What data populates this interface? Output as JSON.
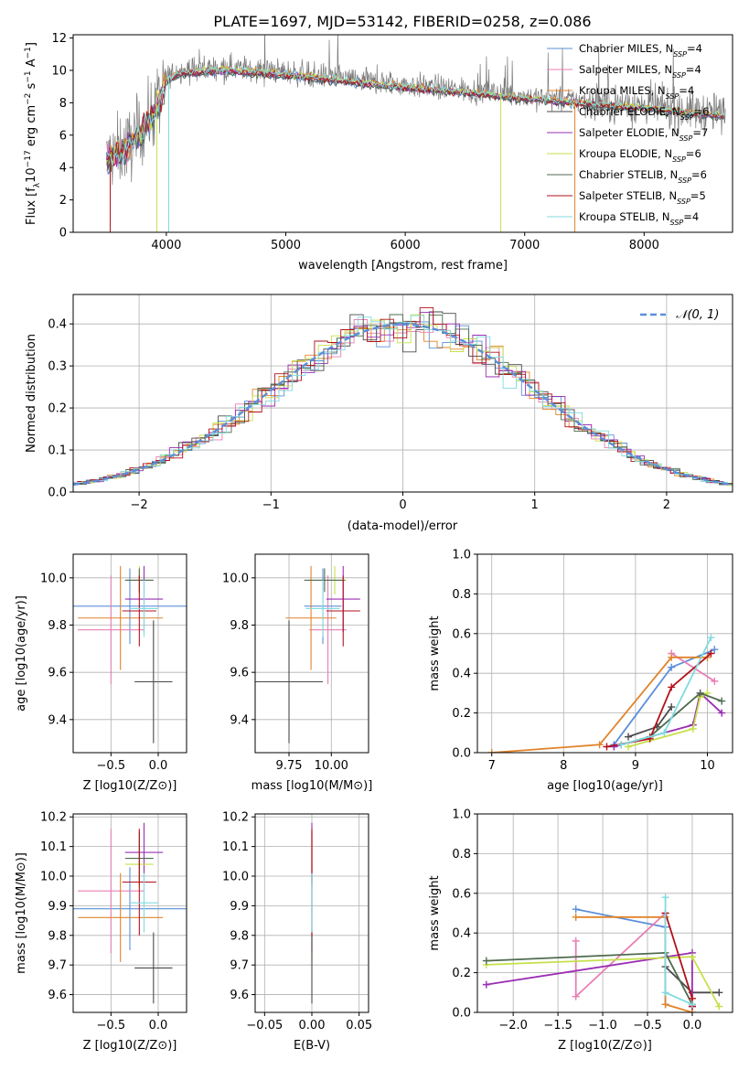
{
  "colors": {
    "Chabrier MILES": "#5b8fd9",
    "Salpeter MILES": "#e87fb4",
    "Kroupa MILES": "#e0842a",
    "Chabrier ELODIE": "#4a4a4a",
    "Salpeter ELODIE": "#9a2db3",
    "Kroupa ELODIE": "#c6e04a",
    "Chabrier STELIB": "#4f6b4f",
    "Salpeter STELIB": "#b3121c",
    "Kroupa STELIB": "#7fdbe0",
    "spectrum": "#7a7a7a",
    "normal": "#5b8fd9"
  },
  "chart_data": [
    {
      "id": "spectrum",
      "type": "line",
      "title": "PLATE=1697, MJD=53142, FIBERID=0258, z=0.086",
      "xlabel": "wavelength [Angstrom, rest frame]",
      "ylabel": "Flux [f_λ 10^-17 erg cm^-2 s^-1 A^-1]",
      "xlim": [
        3220,
        8740
      ],
      "ylim": [
        0,
        12.2
      ],
      "xticks": [
        "4000",
        "5000",
        "6000",
        "7000",
        "8000"
      ],
      "yticks": [
        "0",
        "2",
        "4",
        "6",
        "8",
        "10",
        "12"
      ],
      "legend_position": "top-right",
      "legend": [
        {
          "name": "Chabrier MILES",
          "nssp": "4"
        },
        {
          "name": "Salpeter MILES",
          "nssp": "4"
        },
        {
          "name": "Kroupa MILES",
          "nssp": "4"
        },
        {
          "name": "Chabrier ELODIE",
          "nssp": "6"
        },
        {
          "name": "Salpeter ELODIE",
          "nssp": "7"
        },
        {
          "name": "Kroupa ELODIE",
          "nssp": "6"
        },
        {
          "name": "Chabrier STELIB",
          "nssp": "6"
        },
        {
          "name": "Salpeter STELIB",
          "nssp": "5"
        },
        {
          "name": "Kroupa STELIB",
          "nssp": "4"
        }
      ],
      "continuum": [
        [
          3500,
          4.5
        ],
        [
          3700,
          5.5
        ],
        [
          3900,
          7.5
        ],
        [
          4000,
          9.5
        ],
        [
          4100,
          10.0
        ],
        [
          4500,
          10.2
        ],
        [
          5000,
          9.9
        ],
        [
          5500,
          9.5
        ],
        [
          6000,
          9.1
        ],
        [
          6500,
          8.8
        ],
        [
          7000,
          8.4
        ],
        [
          7500,
          8.1
        ],
        [
          8000,
          7.8
        ],
        [
          8500,
          7.4
        ],
        [
          8680,
          7.3
        ]
      ]
    },
    {
      "id": "residuals",
      "type": "histogram",
      "xlabel": "(data-model)/error",
      "ylabel": "Normed distribution",
      "xlim": [
        -2.5,
        2.5
      ],
      "ylim": [
        0,
        0.47
      ],
      "xticks": [
        "−2",
        "−1",
        "0",
        "1",
        "2"
      ],
      "yticks": [
        "0.0",
        "0.1",
        "0.2",
        "0.3",
        "0.4"
      ],
      "grid": true,
      "legend_position": "top-right",
      "normal_label": "𝒩(0, 1)",
      "bin_width": 0.1
    },
    {
      "id": "age-vs-Z",
      "type": "errorbar",
      "xlabel": "Z [log10(Z/Z⊙)]",
      "ylabel": "age [log10(age/yr)]",
      "xlim": [
        -0.9,
        0.3
      ],
      "ylim": [
        9.26,
        10.1
      ],
      "xticks": [
        "−0.5",
        "0.0"
      ],
      "yticks": [
        "9.4",
        "9.6",
        "9.8",
        "10.0"
      ],
      "grid": true,
      "points": [
        {
          "model": "Chabrier MILES",
          "x": -0.3,
          "xerr": 0.6,
          "y": 9.88,
          "yerr": 0.16
        },
        {
          "model": "Salpeter MILES",
          "x": -0.5,
          "xerr": 0.35,
          "y": 9.78,
          "yerr": 0.23
        },
        {
          "model": "Kroupa MILES",
          "x": -0.4,
          "xerr": 0.45,
          "y": 9.83,
          "yerr": 0.22
        },
        {
          "model": "Chabrier ELODIE",
          "x": -0.05,
          "xerr": 0.2,
          "y": 9.56,
          "yerr": 0.26
        },
        {
          "model": "Salpeter ELODIE",
          "x": -0.15,
          "xerr": 0.2,
          "y": 9.91,
          "yerr": 0.14
        },
        {
          "model": "Kroupa ELODIE",
          "x": -0.2,
          "xerr": 0.15,
          "y": 9.99,
          "yerr": 0.06
        },
        {
          "model": "Chabrier STELIB",
          "x": -0.2,
          "xerr": 0.15,
          "y": 9.99,
          "yerr": 0.05
        },
        {
          "model": "Salpeter STELIB",
          "x": -0.2,
          "xerr": 0.18,
          "y": 9.86,
          "yerr": 0.15
        },
        {
          "model": "Kroupa STELIB",
          "x": -0.15,
          "xerr": 0.15,
          "y": 9.87,
          "yerr": 0.12
        }
      ]
    },
    {
      "id": "age-vs-mass",
      "type": "errorbar",
      "xlabel": "mass [log10(M/M⊙)]",
      "ylabel": "",
      "xlim": [
        9.55,
        10.22
      ],
      "ylim": [
        9.26,
        10.1
      ],
      "xticks": [
        "9.75",
        "10.00"
      ],
      "yticks": [
        "9.4",
        "9.6",
        "9.8",
        "10.0"
      ],
      "grid": true,
      "points": [
        {
          "model": "Chabrier MILES",
          "x": 9.95,
          "xerr": 0.11,
          "y": 9.88,
          "yerr": 0.16
        },
        {
          "model": "Salpeter MILES",
          "x": 9.98,
          "xerr": 0.11,
          "y": 9.78,
          "yerr": 0.23
        },
        {
          "model": "Kroupa MILES",
          "x": 9.88,
          "xerr": 0.15,
          "y": 9.83,
          "yerr": 0.22
        },
        {
          "model": "Chabrier ELODIE",
          "x": 9.75,
          "xerr": 0.2,
          "y": 9.56,
          "yerr": 0.26
        },
        {
          "model": "Salpeter ELODIE",
          "x": 10.07,
          "xerr": 0.1,
          "y": 9.91,
          "yerr": 0.14
        },
        {
          "model": "Kroupa ELODIE",
          "x": 10.02,
          "xerr": 0.07,
          "y": 9.99,
          "yerr": 0.06
        },
        {
          "model": "Chabrier STELIB",
          "x": 9.96,
          "xerr": 0.12,
          "y": 9.99,
          "yerr": 0.05
        },
        {
          "model": "Salpeter STELIB",
          "x": 10.07,
          "xerr": 0.1,
          "y": 9.86,
          "yerr": 0.15
        },
        {
          "model": "Kroupa STELIB",
          "x": 9.95,
          "xerr": 0.1,
          "y": 9.87,
          "yerr": 0.12
        }
      ]
    },
    {
      "id": "weight-vs-age",
      "type": "line",
      "xlabel": "age [log10(age/yr)]",
      "ylabel": "mass weight",
      "xlim": [
        6.8,
        10.35
      ],
      "ylim": [
        0,
        1
      ],
      "xticks": [
        "7",
        "8",
        "9",
        "10"
      ],
      "yticks": [
        "0.0",
        "0.2",
        "0.4",
        "0.6",
        "0.8",
        "1.0"
      ],
      "grid": true,
      "series": [
        {
          "model": "Chabrier MILES",
          "x": [
            8.7,
            9.5,
            10.1
          ],
          "y": [
            0.04,
            0.43,
            0.52
          ]
        },
        {
          "model": "Salpeter MILES",
          "x": [
            9.5,
            10.1
          ],
          "y": [
            0.5,
            0.36
          ]
        },
        {
          "model": "Kroupa MILES",
          "x": [
            7.0,
            8.5,
            9.5,
            10.0
          ],
          "y": [
            0.0,
            0.04,
            0.48,
            0.48
          ]
        },
        {
          "model": "Chabrier ELODIE",
          "x": [
            8.9,
            9.3,
            9.5
          ],
          "y": [
            0.08,
            0.13,
            0.23
          ]
        },
        {
          "model": "Salpeter ELODIE",
          "x": [
            8.7,
            9.8,
            9.9,
            10.2
          ],
          "y": [
            0.03,
            0.14,
            0.3,
            0.2
          ]
        },
        {
          "model": "Kroupa ELODIE",
          "x": [
            8.9,
            9.8,
            9.9,
            10.0
          ],
          "y": [
            0.03,
            0.12,
            0.28,
            0.3
          ]
        },
        {
          "model": "Chabrier STELIB",
          "x": [
            8.8,
            9.2,
            9.9,
            10.2
          ],
          "y": [
            0.04,
            0.08,
            0.3,
            0.26
          ]
        },
        {
          "model": "Salpeter STELIB",
          "x": [
            8.6,
            9.2,
            9.5,
            10.05
          ],
          "y": [
            0.03,
            0.07,
            0.33,
            0.5
          ]
        },
        {
          "model": "Kroupa STELIB",
          "x": [
            8.8,
            9.4,
            10.05
          ],
          "y": [
            0.04,
            0.1,
            0.58
          ]
        }
      ]
    },
    {
      "id": "mass-vs-Z",
      "type": "errorbar",
      "xlabel": "Z [log10(Z/Z⊙)]",
      "ylabel": "mass [log10(M/M⊙)]",
      "xlim": [
        -0.9,
        0.3
      ],
      "ylim": [
        9.54,
        10.21
      ],
      "xticks": [
        "−0.5",
        "0.0"
      ],
      "yticks": [
        "9.6",
        "9.7",
        "9.8",
        "9.9",
        "10.0",
        "10.1",
        "10.2"
      ],
      "grid": true,
      "points": [
        {
          "model": "Chabrier MILES",
          "x": -0.3,
          "xerr": 0.6,
          "y": 9.89,
          "yerr": 0.14
        },
        {
          "model": "Salpeter MILES",
          "x": -0.5,
          "xerr": 0.35,
          "y": 9.95,
          "yerr": 0.21
        },
        {
          "model": "Kroupa MILES",
          "x": -0.4,
          "xerr": 0.45,
          "y": 9.86,
          "yerr": 0.15
        },
        {
          "model": "Chabrier ELODIE",
          "x": -0.05,
          "xerr": 0.2,
          "y": 9.69,
          "yerr": 0.12
        },
        {
          "model": "Salpeter ELODIE",
          "x": -0.15,
          "xerr": 0.2,
          "y": 10.08,
          "yerr": 0.1
        },
        {
          "model": "Kroupa ELODIE",
          "x": -0.2,
          "xerr": 0.15,
          "y": 10.04,
          "yerr": 0.08
        },
        {
          "model": "Chabrier STELIB",
          "x": -0.2,
          "xerr": 0.15,
          "y": 10.06,
          "yerr": 0.09
        },
        {
          "model": "Salpeter STELIB",
          "x": -0.2,
          "xerr": 0.18,
          "y": 9.98,
          "yerr": 0.18
        },
        {
          "model": "Kroupa STELIB",
          "x": -0.15,
          "xerr": 0.15,
          "y": 9.91,
          "yerr": 0.1
        }
      ]
    },
    {
      "id": "mass-vs-ebv",
      "type": "errorbar",
      "xlabel": "E(B-V)",
      "ylabel": "",
      "xlim": [
        -0.06,
        0.06
      ],
      "ylim": [
        9.54,
        10.21
      ],
      "xticks": [
        "−0.05",
        "0.00",
        "0.05"
      ],
      "yticks": [
        "9.6",
        "9.7",
        "9.8",
        "9.9",
        "10.0",
        "10.1",
        "10.2"
      ],
      "grid": true,
      "points": [
        {
          "model": "Chabrier MILES",
          "x": 0,
          "xerr": 0,
          "y": 9.89,
          "yerr": 0.14
        },
        {
          "model": "Salpeter MILES",
          "x": 0,
          "xerr": 0,
          "y": 9.95,
          "yerr": 0.21
        },
        {
          "model": "Kroupa MILES",
          "x": 0,
          "xerr": 0,
          "y": 9.86,
          "yerr": 0.15
        },
        {
          "model": "Chabrier ELODIE",
          "x": 0,
          "xerr": 0,
          "y": 9.69,
          "yerr": 0.12
        },
        {
          "model": "Salpeter ELODIE",
          "x": 0,
          "xerr": 0,
          "y": 10.08,
          "yerr": 0.1
        },
        {
          "model": "Kroupa ELODIE",
          "x": 0,
          "xerr": 0,
          "y": 10.04,
          "yerr": 0.08
        },
        {
          "model": "Chabrier STELIB",
          "x": 0,
          "xerr": 0,
          "y": 10.06,
          "yerr": 0.09
        },
        {
          "model": "Salpeter STELIB",
          "x": 0,
          "xerr": 0,
          "y": 9.98,
          "yerr": 0.18
        },
        {
          "model": "Kroupa STELIB",
          "x": 0,
          "xerr": 0,
          "y": 9.91,
          "yerr": 0.1
        }
      ]
    },
    {
      "id": "weight-vs-Z",
      "type": "line",
      "xlabel": "Z [log10(Z/Z⊙)]",
      "ylabel": "mass weight",
      "xlim": [
        -2.4,
        0.45
      ],
      "ylim": [
        0,
        1
      ],
      "xticks": [
        "−2.0",
        "−1.5",
        "−1.0",
        "−0.5",
        "0.0"
      ],
      "yticks": [
        "0.0",
        "0.2",
        "0.4",
        "0.6",
        "0.8",
        "1.0"
      ],
      "grid": true,
      "series": [
        {
          "model": "Chabrier MILES",
          "x": [
            -1.3,
            -0.3,
            -0.3
          ],
          "y": [
            0.52,
            0.43,
            0.04
          ]
        },
        {
          "model": "Salpeter MILES",
          "x": [
            -1.3,
            -1.3,
            -0.3
          ],
          "y": [
            0.36,
            0.08,
            0.5
          ]
        },
        {
          "model": "Kroupa MILES",
          "x": [
            -1.3,
            -0.3,
            -0.3,
            0.0
          ],
          "y": [
            0.48,
            0.48,
            0.04,
            0.0
          ]
        },
        {
          "model": "Chabrier ELODIE",
          "x": [
            -0.3,
            0.0,
            0.3
          ],
          "y": [
            0.23,
            0.1,
            0.1
          ]
        },
        {
          "model": "Salpeter ELODIE",
          "x": [
            -2.3,
            0.0,
            0.0
          ],
          "y": [
            0.14,
            0.3,
            0.03
          ]
        },
        {
          "model": "Kroupa ELODIE",
          "x": [
            -2.3,
            0.0,
            0.3
          ],
          "y": [
            0.24,
            0.28,
            0.03
          ]
        },
        {
          "model": "Chabrier STELIB",
          "x": [
            -2.3,
            -0.3,
            0.0
          ],
          "y": [
            0.26,
            0.3,
            0.04
          ]
        },
        {
          "model": "Salpeter STELIB",
          "x": [
            -0.3,
            0.0,
            0.0
          ],
          "y": [
            0.5,
            0.07,
            0.03
          ]
        },
        {
          "model": "Kroupa STELIB",
          "x": [
            -0.3,
            -0.3,
            0.0
          ],
          "y": [
            0.58,
            0.1,
            0.04
          ]
        }
      ]
    }
  ]
}
